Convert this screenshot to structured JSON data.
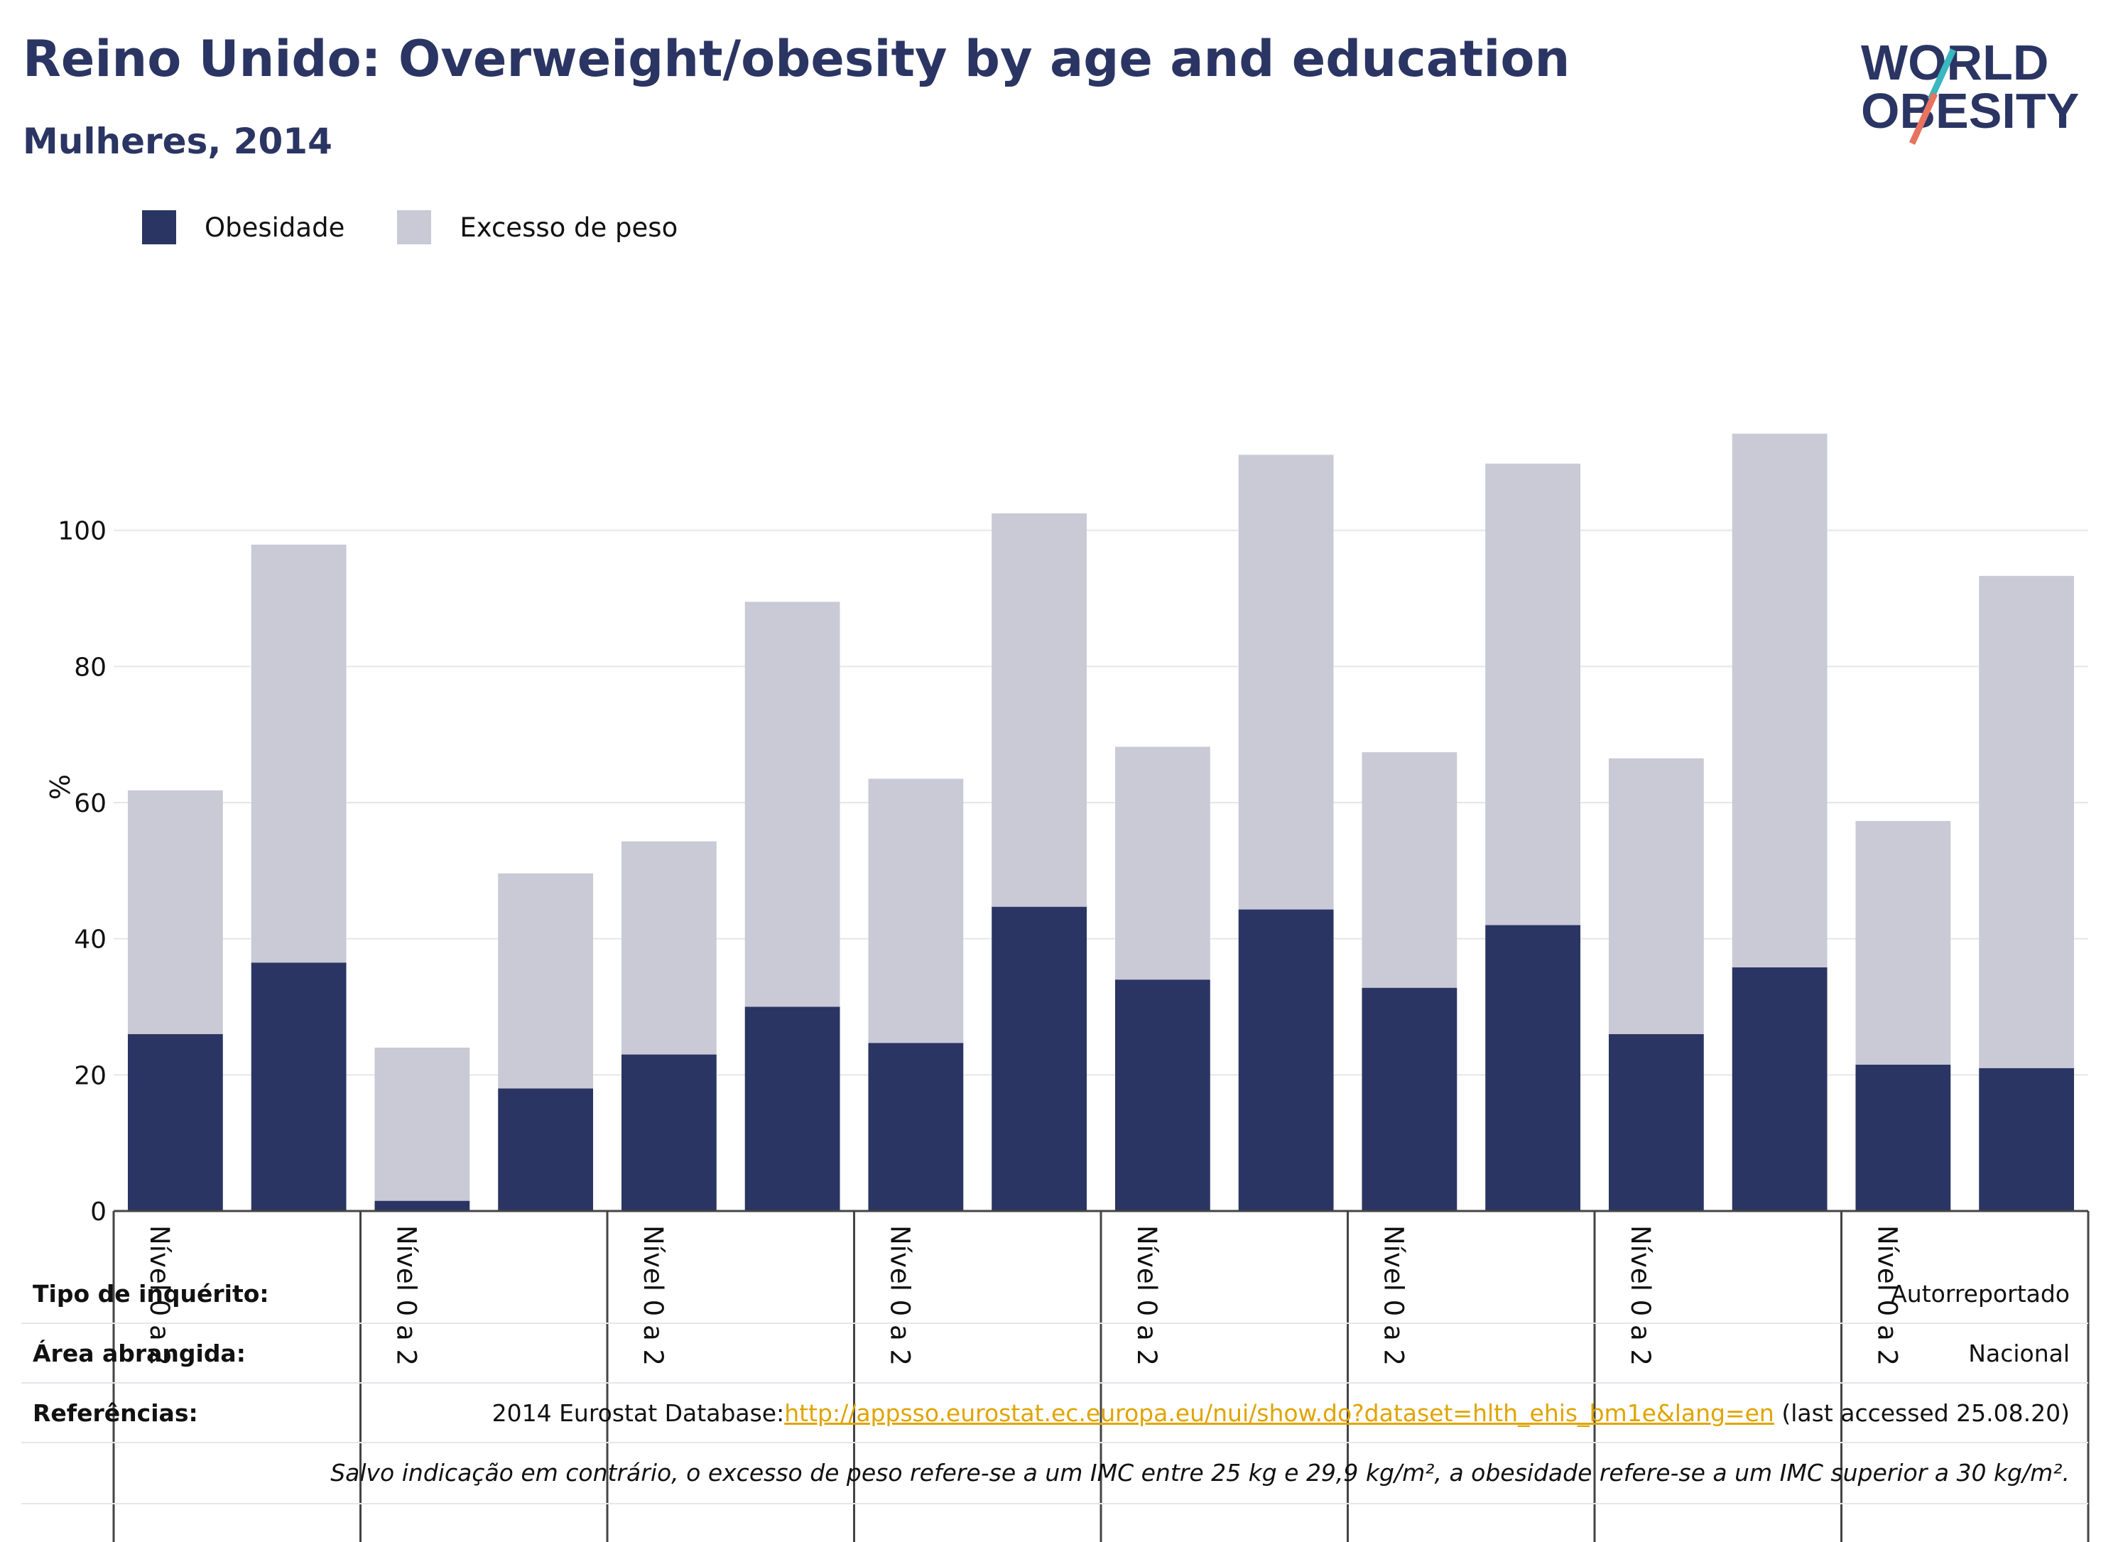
{
  "header": {
    "title": "Reino Unido: Overweight/obesity by age and education",
    "subtitle": "Mulheres, 2014"
  },
  "logo": {
    "line1": "WORLD",
    "line2": "OBESITY"
  },
  "legend": [
    {
      "label": "Obesidade",
      "color": "#2b3563"
    },
    {
      "label": "Excesso de peso",
      "color": "#c9cad6"
    }
  ],
  "chart_data": {
    "type": "bar",
    "stacked": true,
    "ylabel": "%",
    "ylim": [
      0,
      120
    ],
    "yticks": [
      0,
      20,
      40,
      60,
      80,
      100
    ],
    "grid": true,
    "legend_position": "top-left",
    "group_labels": [
      "Nível 0 a 2",
      "Nível 0 a 2",
      "Nível 0 a 2",
      "Nível 0 a 2",
      "Nível 0 a 2",
      "Nível 0 a 2",
      "Nível 0 a 2",
      "Nível 0 a 2"
    ],
    "series": [
      {
        "name": "Obesidade",
        "color": "#2b3563",
        "values": [
          26,
          36.5,
          1.5,
          18,
          23,
          30,
          24.7,
          44.7,
          34,
          44.3,
          32.8,
          42,
          26,
          35.8,
          21.5,
          21
        ]
      },
      {
        "name": "Excesso de peso",
        "color": "#c9cad6",
        "values": [
          35.8,
          61.4,
          22.5,
          31.6,
          31.3,
          59.5,
          38.8,
          57.8,
          34.2,
          66.8,
          34.6,
          67.8,
          40.5,
          78.4,
          35.8,
          72.3
        ]
      }
    ]
  },
  "footer": {
    "survey_type": {
      "label": "Tipo de inquérito:",
      "value": "Autorreportado"
    },
    "coverage": {
      "label": "Área abrangida:",
      "value": "Nacional"
    },
    "references": {
      "label": "Referências:",
      "prefix": "2014 Eurostat Database:",
      "link": "http://appsso.eurostat.ec.europa.eu/nui/show.do?dataset=hlth_ehis_bm1e&lang=en",
      "suffix": " (last accessed 25.08.20)"
    },
    "note": "Salvo indicação em contrário, o excesso de peso refere-se a um IMC entre 25 kg e 29,9 kg/m², a obesidade refere-se a um IMC superior a 30 kg/m²."
  }
}
